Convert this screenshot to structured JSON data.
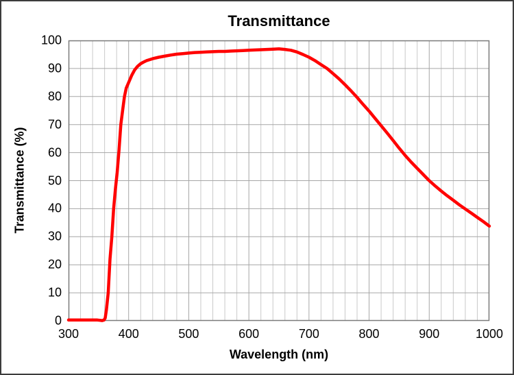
{
  "figure": {
    "background": "#ffffff",
    "border_color": "#3c3c3c"
  },
  "chart_data": {
    "type": "line",
    "title": "Transmittance",
    "xlabel": "Wavelength (nm)",
    "ylabel": "Transmittance (%)",
    "xlim": [
      300,
      1000
    ],
    "ylim": [
      0,
      100
    ],
    "x_major_ticks": [
      300,
      400,
      500,
      600,
      700,
      800,
      900,
      1000
    ],
    "y_major_ticks": [
      0,
      10,
      20,
      30,
      40,
      50,
      60,
      70,
      80,
      90,
      100
    ],
    "x_minor_step": 20,
    "grid": {
      "major_color": "#a6a6a6",
      "minor_color": "#c9c9c9",
      "border_color": "#7a7a7a",
      "minor_horizontal": false
    },
    "legend": "none",
    "series": [
      {
        "name": "Transmittance",
        "color": "#ff0000",
        "line_width": 4.5,
        "x": [
          300,
          310,
          320,
          330,
          340,
          348,
          352,
          356,
          359,
          361,
          363,
          366,
          369,
          372,
          375,
          378,
          381,
          384,
          387,
          390,
          393,
          396,
          400,
          405,
          410,
          415,
          420,
          425,
          430,
          440,
          450,
          460,
          470,
          480,
          490,
          500,
          510,
          520,
          530,
          540,
          550,
          560,
          570,
          580,
          590,
          600,
          610,
          620,
          630,
          640,
          650,
          660,
          670,
          680,
          690,
          700,
          710,
          720,
          730,
          740,
          750,
          760,
          770,
          780,
          790,
          800,
          810,
          820,
          830,
          840,
          850,
          860,
          870,
          880,
          890,
          900,
          910,
          920,
          930,
          940,
          950,
          960,
          970,
          980,
          990,
          1000
        ],
        "y": [
          0.3,
          0.3,
          0.3,
          0.3,
          0.3,
          0.3,
          0.2,
          0.1,
          0.3,
          1,
          4,
          10,
          22,
          30,
          40,
          47,
          53,
          61,
          70,
          75,
          80,
          83,
          85,
          87.5,
          89.5,
          90.8,
          91.7,
          92.3,
          92.8,
          93.5,
          94,
          94.4,
          94.8,
          95.1,
          95.3,
          95.5,
          95.7,
          95.8,
          95.9,
          96,
          96.1,
          96.1,
          96.2,
          96.3,
          96.4,
          96.5,
          96.6,
          96.7,
          96.8,
          96.9,
          97,
          96.8,
          96.5,
          95.9,
          95,
          94,
          92.8,
          91.4,
          90,
          88.2,
          86.3,
          84.2,
          82,
          79.7,
          77.2,
          74.8,
          72.2,
          69.6,
          67,
          64.3,
          61.6,
          59,
          56.6,
          54.4,
          52.2,
          50,
          48.1,
          46.3,
          44.6,
          43,
          41.4,
          39.9,
          38.4,
          36.9,
          35.4,
          33.8
        ]
      }
    ]
  }
}
